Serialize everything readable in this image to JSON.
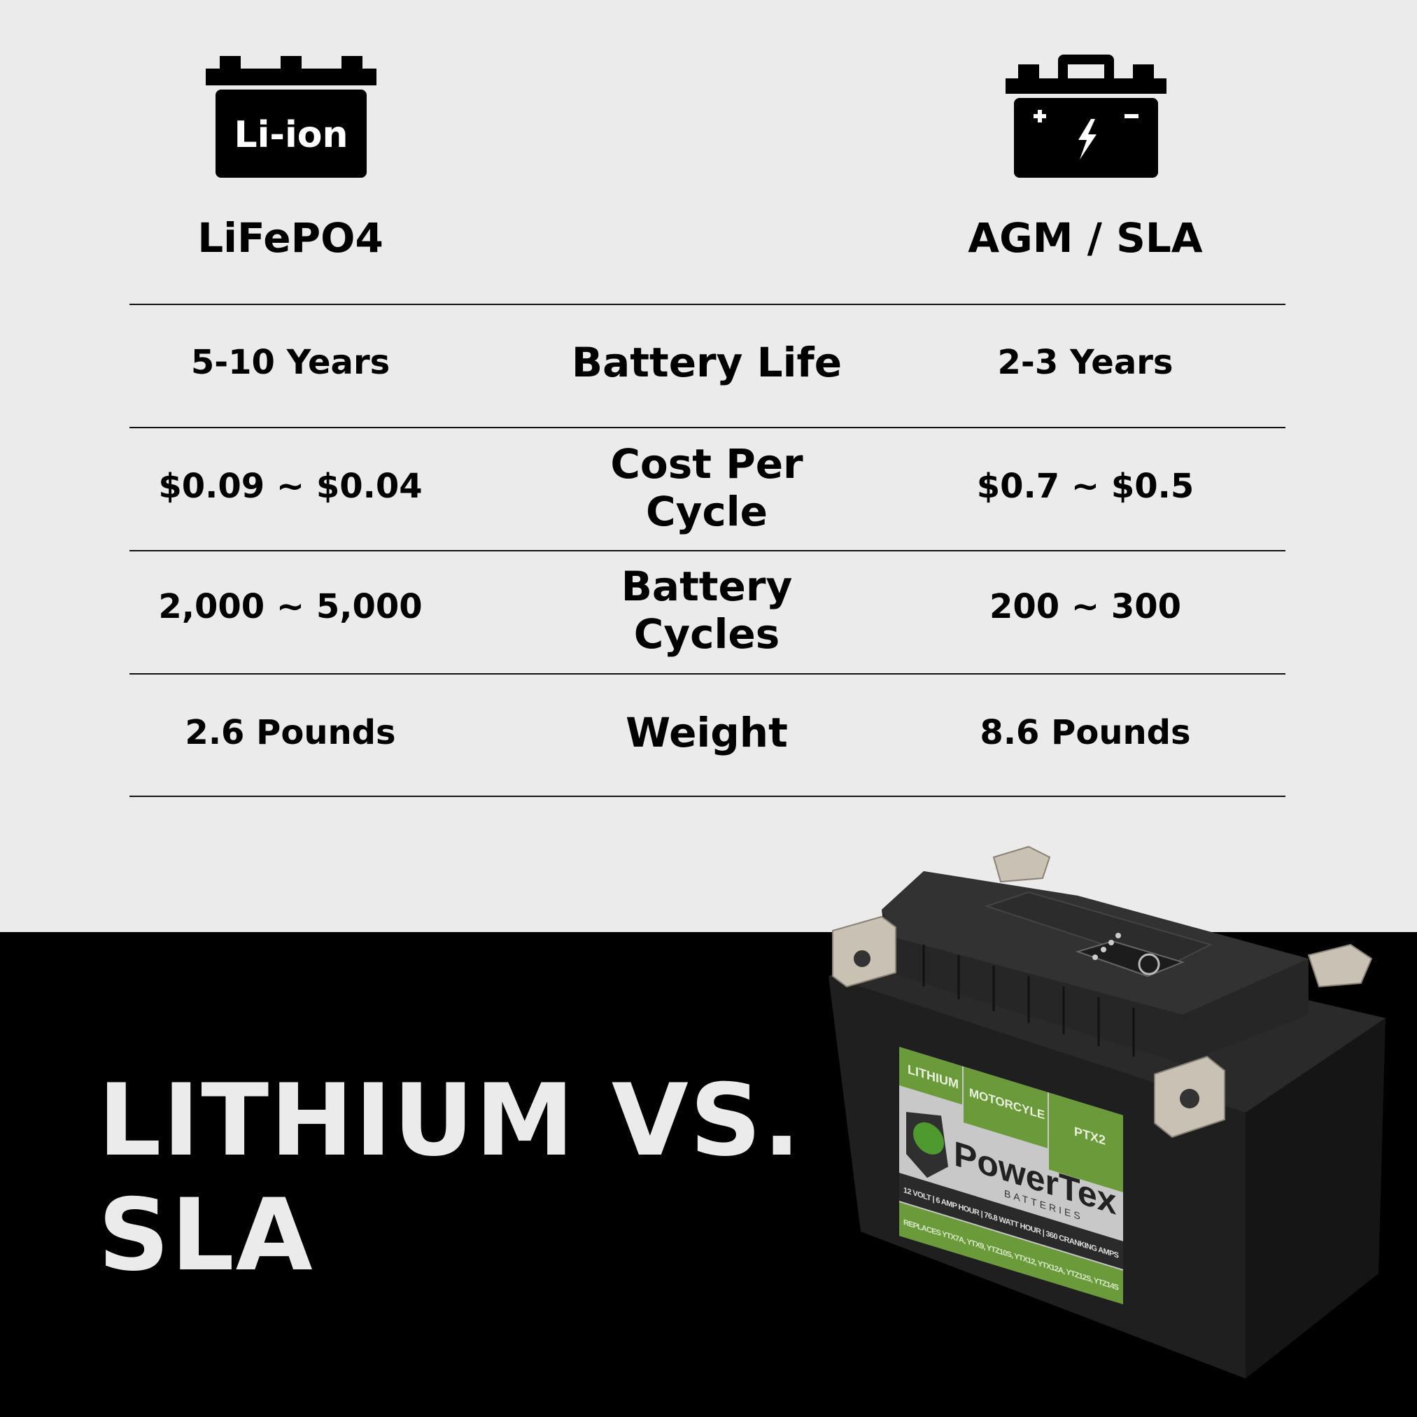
{
  "columns": {
    "left": {
      "icon": "li-ion-battery-icon",
      "icon_text": "Li-ion",
      "label": "LiFePO4"
    },
    "right": {
      "icon": "lead-acid-battery-icon",
      "label": "AGM / SLA"
    }
  },
  "rows": [
    {
      "left": "5-10 Years",
      "metric": "Battery Life",
      "right": "2-3 Years"
    },
    {
      "left": "$0.09 ~ $0.04",
      "metric": "Cost Per Cycle",
      "right": "$0.7 ~ $0.5"
    },
    {
      "left": "2,000 ~ 5,000",
      "metric": "Battery Cycles",
      "right": "200 ~ 300"
    },
    {
      "left": "2.6 Pounds",
      "metric": "Weight",
      "right": "8.6 Pounds"
    }
  ],
  "title": {
    "line1": "LITHIUM VS.",
    "line2": "SLA"
  },
  "product_label": {
    "tab1": "LITHIUM",
    "tab2": "MOTORCYLE",
    "tab3": "PTX2",
    "brand": "PowerTex",
    "brand_sub": "BATTERIES",
    "specs": "12 VOLT | 6 AMP HOUR | 76.8 WATT HOUR | 360 CRANKING AMPS",
    "replaces": "REPLACES YTX7A, YTX9, YTZ10S, YTX12, YTX12A, YTZ12S, YTZ14S"
  },
  "colors": {
    "background": "#ebebeb",
    "bottom": "#000000",
    "label_green": "#6a9a3a"
  }
}
